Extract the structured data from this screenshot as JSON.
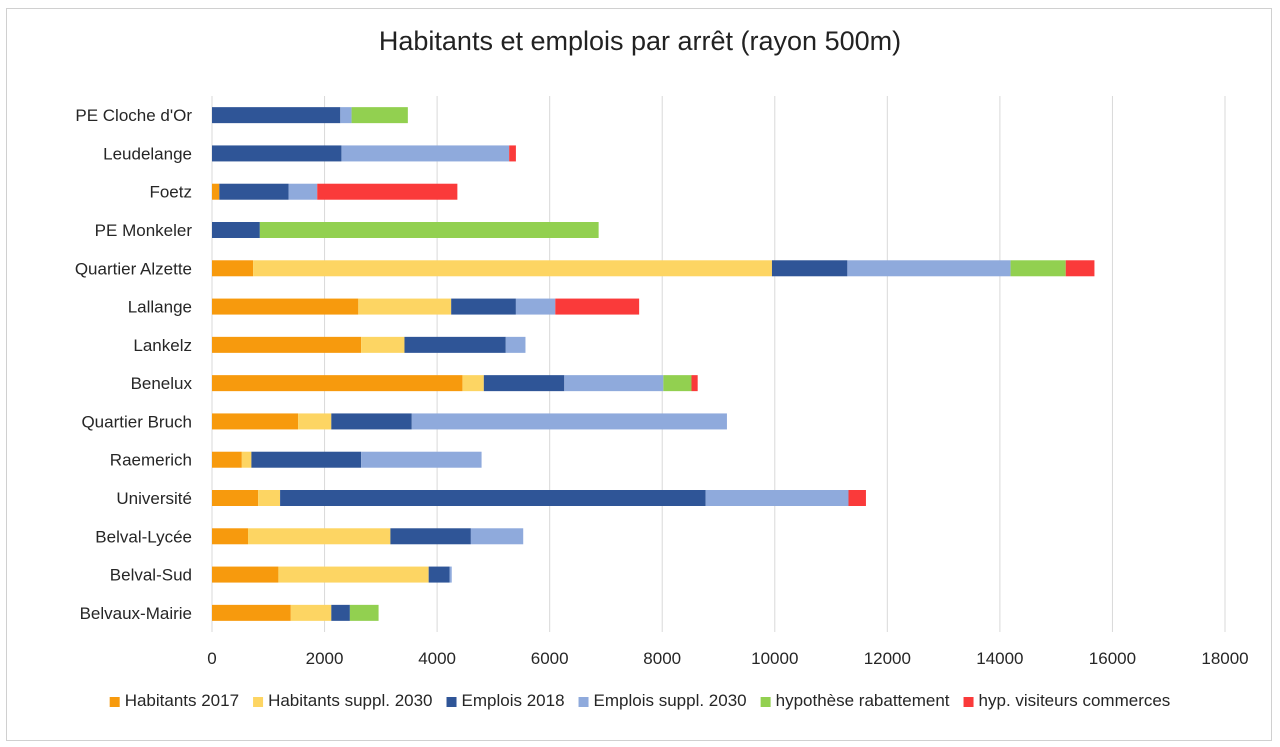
{
  "chart_data": {
    "type": "bar",
    "orientation": "horizontal",
    "stacked": true,
    "title": "Habitants et emplois par arrêt (rayon 500m)",
    "categories": [
      "PE Cloche d'Or",
      "Leudelange",
      "Foetz",
      "PE Monkeler",
      "Quartier Alzette",
      "Lallange",
      "Lankelz",
      "Benelux",
      "Quartier Bruch",
      "Raemerich",
      "Université",
      "Belval-Lycée",
      "Belval-Sud",
      "Belvaux-Mairie"
    ],
    "series": [
      {
        "name": "Habitants 2017",
        "color": "#F79A0D",
        "values": [
          0,
          0,
          130,
          0,
          730,
          2600,
          2650,
          4450,
          1530,
          530,
          820,
          640,
          1180,
          1400
        ]
      },
      {
        "name": "Habitants suppl. 2030",
        "color": "#FDD563",
        "values": [
          0,
          0,
          0,
          0,
          9220,
          1650,
          770,
          380,
          590,
          170,
          390,
          2530,
          2670,
          720
        ]
      },
      {
        "name": "Emplois 2018",
        "color": "#2F5597",
        "values": [
          2280,
          2300,
          1230,
          850,
          1340,
          1150,
          1800,
          1430,
          1430,
          1950,
          7560,
          1430,
          370,
          330
        ]
      },
      {
        "name": "Emplois suppl. 2030",
        "color": "#8FAADC",
        "values": [
          200,
          2980,
          510,
          0,
          2900,
          700,
          350,
          1760,
          5600,
          2140,
          2540,
          930,
          40,
          0
        ]
      },
      {
        "name": "hypothèse rabattement",
        "color": "#92D050",
        "values": [
          1000,
          0,
          0,
          6020,
          980,
          0,
          0,
          500,
          0,
          0,
          0,
          0,
          0,
          510
        ]
      },
      {
        "name": "hyp. visiteurs commerces",
        "color": "#FA3A3A",
        "values": [
          0,
          120,
          2490,
          0,
          510,
          1490,
          0,
          110,
          0,
          0,
          310,
          0,
          0,
          0
        ]
      }
    ],
    "xlim": [
      0,
      18000
    ],
    "xticks": [
      "0",
      "2000",
      "4000",
      "6000",
      "8000",
      "10000",
      "12000",
      "14000",
      "16000",
      "18000"
    ],
    "grid": "vertical",
    "legend_position": "bottom",
    "xlabel": "",
    "ylabel": ""
  }
}
